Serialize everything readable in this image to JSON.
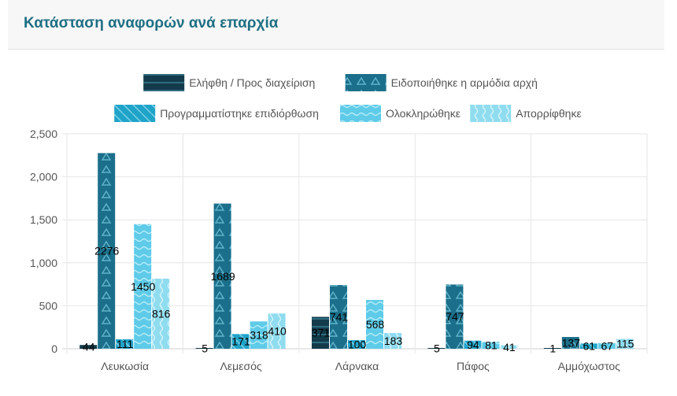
{
  "header": {
    "title": "Κατάσταση αναφορών ανά επαρχία"
  },
  "chart_data": {
    "type": "bar",
    "categories": [
      "Λευκωσία",
      "Λεμεσός",
      "Λάρνακα",
      "Πάφος",
      "Αμμόχωστος"
    ],
    "series": [
      {
        "name": "Ελήφθη / Προς διαχείριση",
        "color": "#133b4a",
        "label_color": "#ffffff",
        "values": [
          44,
          5,
          371,
          5,
          1
        ]
      },
      {
        "name": "Ειδοποιήθηκε η αρμόδια αρχή",
        "color": "#1b6f8a",
        "label_color": "#ffffff",
        "values": [
          2276,
          1689,
          741,
          747,
          137
        ]
      },
      {
        "name": "Προγραμματίστηκε επιδιόρθωση",
        "color": "#1fa3c9",
        "label_color": "#000000",
        "values": [
          111,
          171,
          100,
          94,
          61
        ]
      },
      {
        "name": "Ολοκληρώθηκε",
        "color": "#5ecbe8",
        "label_color": "#000000",
        "values": [
          1450,
          318,
          568,
          81,
          67
        ]
      },
      {
        "name": "Απορρίφθηκε",
        "color": "#8fdcef",
        "label_color": "#000000",
        "values": [
          816,
          410,
          183,
          41,
          115
        ]
      }
    ],
    "ylim": [
      0,
      2500
    ],
    "yticks": [
      "0",
      "500",
      "1,000",
      "1,500",
      "2,000",
      "2,500"
    ],
    "grid": true,
    "legend_position": "top",
    "xlabel": "",
    "ylabel": ""
  }
}
